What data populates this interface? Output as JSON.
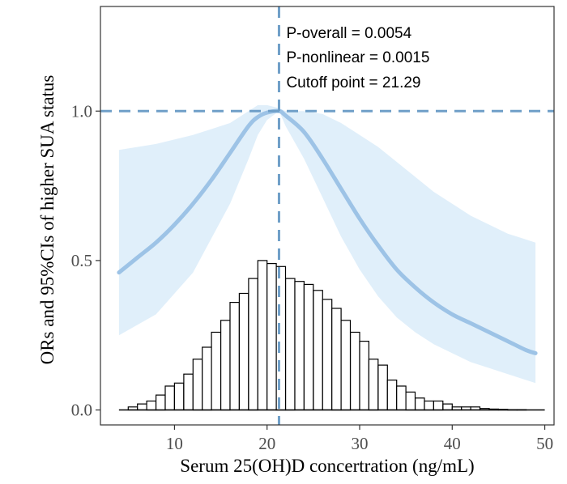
{
  "chart_data": {
    "type": "line",
    "xlabel": "Serum 25(OH)D concertration (ng/mL)",
    "ylabel": "ORs and 95%CIs of higher SUA status",
    "xlim": [
      2,
      51
    ],
    "ylim": [
      -0.05,
      1.35
    ],
    "x_ticks": [
      10,
      20,
      30,
      40,
      50
    ],
    "y_ticks": [
      0.0,
      0.5,
      1.0
    ],
    "y_tick_labels": [
      "0.0",
      "0.5",
      "1.0"
    ],
    "grid": false,
    "annotations": [
      "P-overall = 0.0054",
      "P-nonlinear = 0.0015",
      "Cutoff point = 21.29"
    ],
    "reference_lines": {
      "vertical_x": 21.29,
      "horizontal_y": 1.0
    },
    "colors": {
      "curve": "#9dc3e6",
      "ci_band": "#d6eaf8",
      "reference": "#6f9fc8",
      "histogram_edge": "#000000",
      "histogram_fill": "#ffffff"
    },
    "series": [
      {
        "kind": "or-curve",
        "x": [
          4,
          6,
          8,
          10,
          12,
          14,
          16,
          18,
          19,
          20,
          21.29,
          22,
          24,
          26,
          28,
          30,
          32,
          34,
          36,
          38,
          40,
          42,
          44,
          46,
          48,
          49
        ],
        "y": [
          0.46,
          0.51,
          0.56,
          0.62,
          0.69,
          0.77,
          0.86,
          0.95,
          0.98,
          0.995,
          1.0,
          0.985,
          0.93,
          0.84,
          0.74,
          0.64,
          0.55,
          0.47,
          0.41,
          0.36,
          0.32,
          0.29,
          0.26,
          0.23,
          0.2,
          0.19
        ]
      },
      {
        "kind": "ci-band",
        "x": [
          4,
          8,
          12,
          16,
          18,
          19,
          20,
          21.29,
          22,
          24,
          26,
          28,
          30,
          32,
          34,
          36,
          38,
          40,
          42,
          44,
          46,
          48,
          49
        ],
        "lower": [
          0.25,
          0.32,
          0.46,
          0.69,
          0.84,
          0.92,
          0.97,
          1.0,
          0.95,
          0.84,
          0.71,
          0.58,
          0.47,
          0.38,
          0.31,
          0.26,
          0.22,
          0.19,
          0.16,
          0.14,
          0.12,
          0.1,
          0.09
        ],
        "upper": [
          0.87,
          0.89,
          0.92,
          0.96,
          1.0,
          1.02,
          1.02,
          1.01,
          1.0,
          1.0,
          0.99,
          0.96,
          0.92,
          0.88,
          0.83,
          0.78,
          0.73,
          0.69,
          0.65,
          0.62,
          0.59,
          0.57,
          0.56
        ]
      },
      {
        "kind": "histogram",
        "bin_width": 1,
        "bins_start": [
          4,
          5,
          6,
          7,
          8,
          9,
          10,
          11,
          12,
          13,
          14,
          15,
          16,
          17,
          18,
          19,
          20,
          21,
          22,
          23,
          24,
          25,
          26,
          27,
          28,
          29,
          30,
          31,
          32,
          33,
          34,
          35,
          36,
          37,
          38,
          39,
          40,
          41,
          42,
          43,
          44,
          45,
          46,
          47,
          48,
          49
        ],
        "heights": [
          0.0,
          0.01,
          0.02,
          0.03,
          0.05,
          0.08,
          0.09,
          0.12,
          0.17,
          0.21,
          0.26,
          0.3,
          0.36,
          0.39,
          0.44,
          0.5,
          0.49,
          0.48,
          0.44,
          0.43,
          0.42,
          0.4,
          0.37,
          0.34,
          0.3,
          0.26,
          0.23,
          0.17,
          0.15,
          0.1,
          0.08,
          0.06,
          0.04,
          0.03,
          0.03,
          0.02,
          0.01,
          0.01,
          0.01,
          0.005,
          0.003,
          0.002,
          0.001,
          0.001,
          0.0,
          0.0
        ]
      }
    ]
  }
}
